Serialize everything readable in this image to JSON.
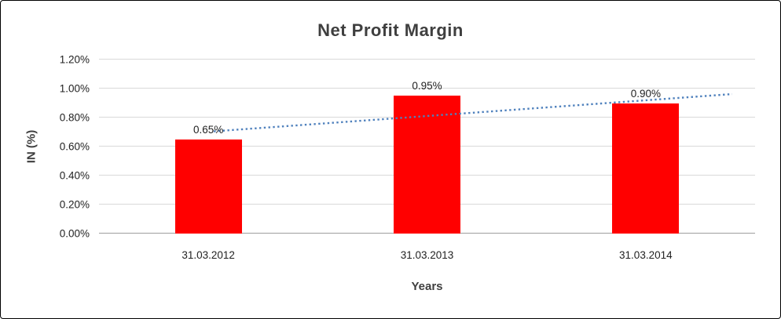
{
  "chart_data": {
    "type": "bar",
    "title": "Net Profit Margin",
    "xlabel": "Years",
    "ylabel": "IN (%)",
    "categories": [
      "31.03.2012",
      "31.03.2013",
      "31.03.2014"
    ],
    "values": [
      0.65,
      0.95,
      0.9
    ],
    "data_labels": [
      "0.65%",
      "0.95%",
      "0.90%"
    ],
    "y_ticks": [
      "0.00%",
      "0.20%",
      "0.40%",
      "0.60%",
      "0.80%",
      "1.00%",
      "1.20%"
    ],
    "y_tick_values": [
      0,
      0.2,
      0.4,
      0.6,
      0.8,
      1.0,
      1.2
    ],
    "ylim": [
      0,
      1.2
    ],
    "grid": true,
    "legend": "none",
    "bar_color": "#ff0000",
    "trendline": {
      "color": "#4f81bd",
      "style": "dotted",
      "start_frac": 0.175,
      "end_frac": 0.965,
      "start_value": 0.705,
      "end_value": 0.962
    }
  }
}
